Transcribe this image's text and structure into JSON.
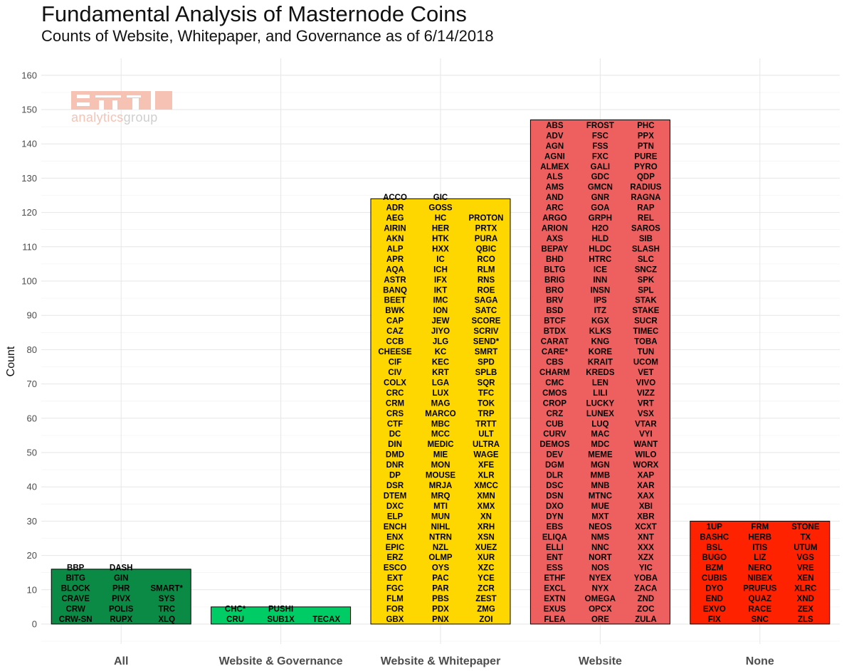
{
  "chart_data": {
    "type": "bar",
    "title": "Fundamental Analysis of Masternode Coins",
    "subtitle": "Counts of Website, Whitepaper, and Governance as of 6/14/2018",
    "xlabel": "",
    "ylabel": "Count",
    "ylim": [
      -6,
      166
    ],
    "yticks": [
      0,
      10,
      20,
      30,
      40,
      50,
      60,
      70,
      80,
      90,
      100,
      110,
      120,
      130,
      140,
      150,
      160
    ],
    "grid": true,
    "categories": [
      "All",
      "Website & Governance",
      "Website & Whitepaper",
      "Website",
      "None"
    ],
    "values": [
      16,
      5,
      124,
      147,
      30
    ],
    "colors": [
      "#0a8a45",
      "#00cc66",
      "#ffd700",
      "#ee6060",
      "#ff2200"
    ],
    "coin_columns": [
      [
        [
          "BBP",
          "BITG",
          "BLOCK",
          "CRAVE",
          "CRW",
          "CRW-SN"
        ],
        [
          "DASH",
          "GIN",
          "PHR",
          "PIVX",
          "POLIS",
          "RUPX"
        ],
        [
          "SMART*",
          "SYS",
          "TRC",
          "XLQ"
        ]
      ],
      [
        [
          "CHC*",
          "CRU"
        ],
        [
          "PUSHI",
          "SUB1X"
        ],
        [
          "TECAX"
        ]
      ],
      [
        [
          "ACCO",
          "ADR",
          "AEG",
          "AIRIN",
          "AKN",
          "ALP",
          "APR",
          "AQA",
          "ASTR",
          "BANQ",
          "BEET",
          "BWK",
          "CAP",
          "CAZ",
          "CCB",
          "CHEESE",
          "CIF",
          "CIV",
          "COLX",
          "CRC",
          "CRM",
          "CRS",
          "CTF",
          "DC",
          "DIN",
          "DMD",
          "DNR",
          "DP",
          "DSR",
          "DTEM",
          "DXC",
          "ELP",
          "ENCH",
          "ENX",
          "EPIC",
          "ERZ",
          "ESCO",
          "EXT",
          "FGC",
          "FLM",
          "FOR",
          "GBX"
        ],
        [
          "GIC",
          "GOSS",
          "HC",
          "HER",
          "HTK",
          "HXX",
          "IC",
          "ICH",
          "IFX",
          "IKT",
          "IMC",
          "ION",
          "JEW",
          "JIYO",
          "JLG",
          "KC",
          "KEC",
          "KRT",
          "LGA",
          "LUX",
          "MAG",
          "MARCO",
          "MBC",
          "MCC",
          "MEDIC",
          "MIE",
          "MON",
          "MOUSE",
          "MRJA",
          "MRQ",
          "MTI",
          "MUN",
          "NIHL",
          "NTRN",
          "NZL",
          "OLMP",
          "OYS",
          "PAC",
          "PAR",
          "PBS",
          "PDX",
          "PNX"
        ],
        [
          "PROTON",
          "PRTX",
          "PURA",
          "QBIC",
          "RCO",
          "RLM",
          "RNS",
          "ROE",
          "SAGA",
          "SATC",
          "SCORE",
          "SCRIV",
          "SEND*",
          "SMRT",
          "SPD",
          "SPLB",
          "SQR",
          "TFC",
          "TOK",
          "TRP",
          "TRTT",
          "ULT",
          "ULTRA",
          "WAGE",
          "XFE",
          "XLR",
          "XMCC",
          "XMN",
          "XMX",
          "XN",
          "XRH",
          "XSN",
          "XUEZ",
          "XUR",
          "XZC",
          "YCE",
          "ZCR",
          "ZEST",
          "ZMG",
          "ZOI"
        ]
      ],
      [
        [
          "ABS",
          "ADV",
          "AGN",
          "AGNI",
          "ALMEX",
          "ALS",
          "AMS",
          "AND",
          "ARC",
          "ARGO",
          "ARION",
          "AXS",
          "BEPAY",
          "BHD",
          "BLTG",
          "BRIG",
          "BRO",
          "BRV",
          "BSD",
          "BTCF",
          "BTDX",
          "CARAT",
          "CARE*",
          "CBS",
          "CHARM",
          "CMC",
          "CMOS",
          "CROP",
          "CRZ",
          "CUB",
          "CURV",
          "DEMOS",
          "DEV",
          "DGM",
          "DLR",
          "DSC",
          "DSN",
          "DXO",
          "DYN",
          "EBS",
          "ELIQA",
          "ELLI",
          "ENT",
          "ESS",
          "ETHF",
          "EXCL",
          "EXTN",
          "EXUS",
          "FLEA"
        ],
        [
          "FROST",
          "FSC",
          "FSS",
          "FXC",
          "GALI",
          "GDC",
          "GMCN",
          "GNR",
          "GOA",
          "GRPH",
          "H2O",
          "HLD",
          "HLDC",
          "HTRC",
          "ICE",
          "INN",
          "INSN",
          "IPS",
          "ITZ",
          "KGX",
          "KLKS",
          "KNG",
          "KORE",
          "KRAIT",
          "KREDS",
          "LEN",
          "LILI",
          "LUCKY",
          "LUNEX",
          "LUQ",
          "MAC",
          "MDC",
          "MEME",
          "MGN",
          "MMB",
          "MNB",
          "MTNC",
          "MUE",
          "MXT",
          "NEOS",
          "NMS",
          "NNC",
          "NORT",
          "NOS",
          "NYEX",
          "NYX",
          "OMEGA",
          "OPCX",
          "ORE"
        ],
        [
          "PHC",
          "PPX",
          "PTN",
          "PURE",
          "PYRO",
          "QDP",
          "RADIUS",
          "RAGNA",
          "RAP",
          "REL",
          "SAROS",
          "SIB",
          "SLASH",
          "SLC",
          "SNCZ",
          "SPK",
          "SPL",
          "STAK",
          "STAKE",
          "SUCR",
          "TIMEC",
          "TOBA",
          "TUN",
          "UCOM",
          "VET",
          "VIVO",
          "VIZZ",
          "VRT",
          "VSX",
          "VTAR",
          "VYI",
          "WANT",
          "WILO",
          "WORX",
          "XAP",
          "XAR",
          "XAX",
          "XBI",
          "XBR",
          "XCXT",
          "XNT",
          "XXX",
          "XZX",
          "YIC",
          "YOBA",
          "ZACA",
          "ZND",
          "ZOC",
          "ZULA"
        ]
      ],
      [
        [
          "1UP",
          "BASHC",
          "BSL",
          "BUGO",
          "BZM",
          "CUBIS",
          "DYO",
          "END",
          "EXVO",
          "FIX"
        ],
        [
          "FRM",
          "HERB",
          "ITIS",
          "LIZ",
          "NERO",
          "NIBEX",
          "PRUFUS",
          "QUAZ",
          "RACE",
          "SNC"
        ],
        [
          "STONE",
          "TX",
          "UTUM",
          "VGS",
          "VRE",
          "XEN",
          "XLRC",
          "XND",
          "ZEX",
          "ZLS"
        ]
      ]
    ]
  },
  "logo": {
    "top": "omni",
    "bottom_a": "analytics",
    "bottom_b": "group",
    "color": "#f6c2b4"
  }
}
